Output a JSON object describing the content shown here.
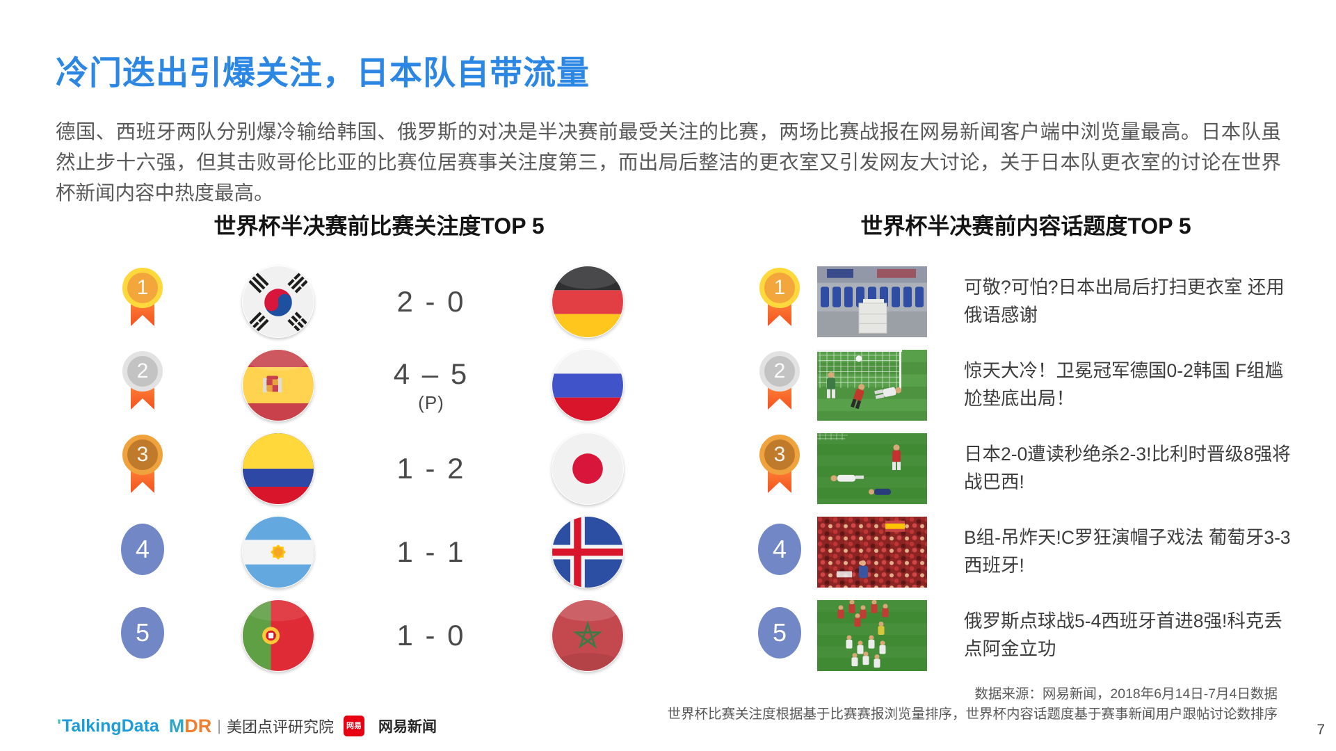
{
  "header": {
    "title": "冷门迭出引爆关注，日本队自带流量",
    "paragraph": "德国、西班牙两队分别爆冷输给韩国、俄罗斯的对决是半决赛前最受关注的比赛，两场比赛战报在网易新闻客户端中浏览量最高。日本队虽然止步十六强，但其击败哥伦比亚的比赛位居赛事关注度第三，而出局后整洁的更衣室又引发网友大讨论，关于日本队更衣室的讨论在世界杯新闻内容中热度最高。"
  },
  "colors": {
    "accent_blue": "#2B87E3",
    "body_text": "#595959",
    "gold": "#F2A63B",
    "silver": "#C3C3C3",
    "bronze": "#C07A2B",
    "rank_blue": "#7187C6",
    "ribbon_orange": "#F4511E"
  },
  "left_panel": {
    "title": "世界杯半决赛前比赛关注度TOP 5",
    "rows": [
      {
        "rank": "1",
        "medal": "gold",
        "team_a": "south-korea-flag-icon",
        "score": "2 - 0",
        "note": "",
        "team_b": "germany-flag-icon"
      },
      {
        "rank": "2",
        "medal": "silver",
        "team_a": "spain-flag-icon",
        "score": "4 – 5",
        "note": "(P)",
        "team_b": "russia-flag-icon"
      },
      {
        "rank": "3",
        "medal": "bronze",
        "team_a": "colombia-flag-icon",
        "score": "1 - 2",
        "note": "",
        "team_b": "japan-flag-icon"
      },
      {
        "rank": "4",
        "medal": "plain",
        "team_a": "argentina-flag-icon",
        "score": "1 - 1",
        "note": "",
        "team_b": "iceland-flag-icon"
      },
      {
        "rank": "5",
        "medal": "plain",
        "team_a": "portugal-flag-icon",
        "score": "1 - 0",
        "note": "",
        "team_b": "morocco-flag-icon"
      }
    ]
  },
  "right_panel": {
    "title": "世界杯半决赛前内容话题度TOP 5",
    "rows": [
      {
        "rank": "1",
        "medal": "gold",
        "image": "locker-room-photo",
        "headline": "可敬?可怕?日本出局后打扫更衣室 还用俄语感谢"
      },
      {
        "rank": "2",
        "medal": "silver",
        "image": "germany-korea-goal-photo",
        "headline": "惊天大冷！卫冕冠军德国0-2韩国 F组尴尬垫底出局！"
      },
      {
        "rank": "3",
        "medal": "bronze",
        "image": "japan-belgium-photo",
        "headline": "日本2-0遭读秒绝杀2-3!比利时晋级8强将战巴西!"
      },
      {
        "rank": "4",
        "medal": "plain",
        "image": "spain-fans-photo",
        "headline": "B组-吊炸天!C罗狂演帽子戏法 葡萄牙3-3西班牙!"
      },
      {
        "rank": "5",
        "medal": "plain",
        "image": "russia-spain-photo",
        "headline": "俄罗斯点球战5-4西班牙首进8强!科克丢点阿金立功"
      }
    ]
  },
  "footer": {
    "source_line1": "数据来源：网易新闻，2018年6月14日-7月4日数据",
    "source_line2": "世界杯比赛关注度根据基于比赛赛报浏览量排序，世界杯内容话题度基于赛事新闻用户跟帖讨论数排序",
    "page_number": "7",
    "logos": {
      "talkingdata": "TalkingData",
      "mdr": "MDR",
      "meituan": "美团点评研究院",
      "netease_badge": "网易",
      "netease": "网易新闻"
    }
  }
}
